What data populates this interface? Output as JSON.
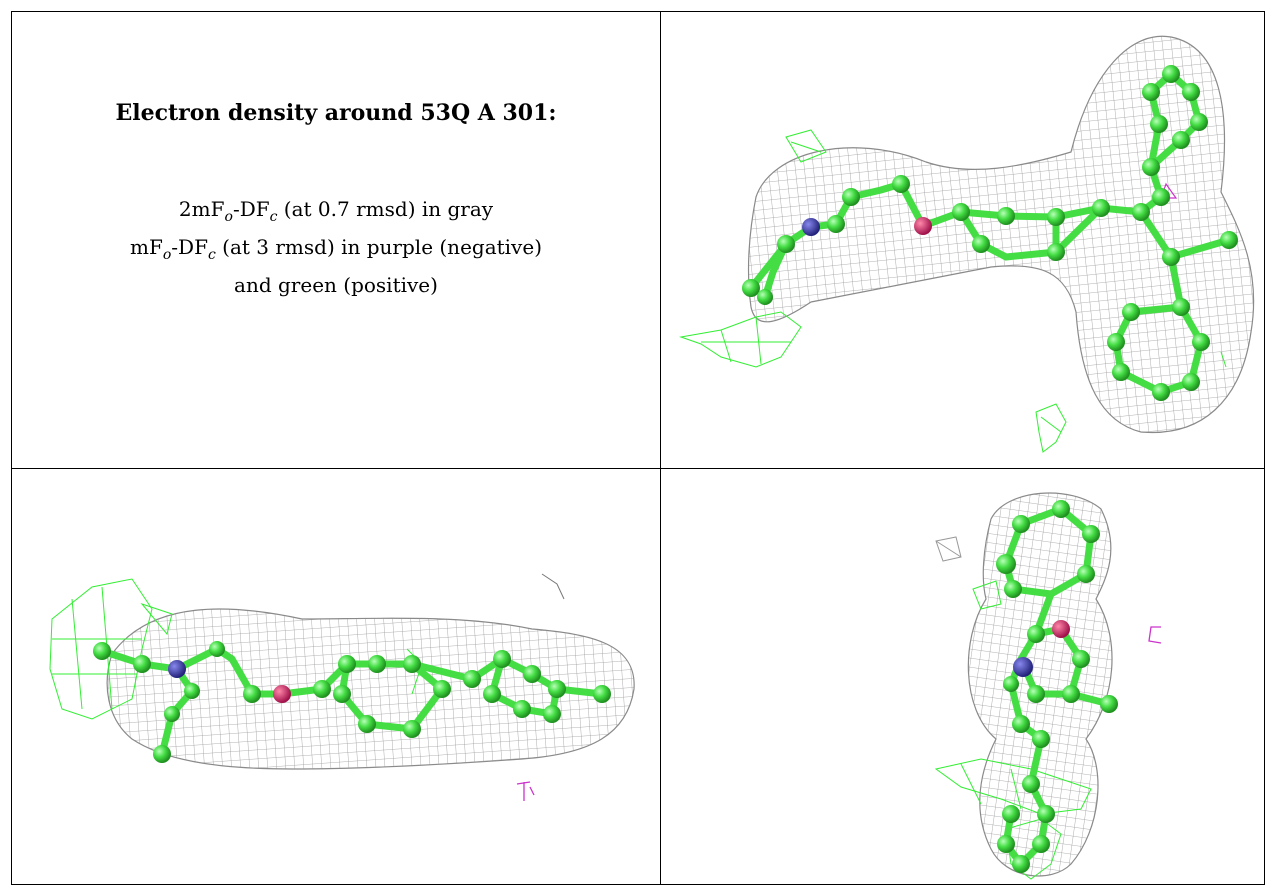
{
  "text": {
    "title": "Electron density around 53Q A 301:",
    "legend_line1_prefix": "2mF",
    "legend_line1_middle": "-DF",
    "legend_line1_suffix": " (at 0.7 rmsd) in gray",
    "legend_line2_prefix": "mF",
    "legend_line2_middle": "-DF",
    "legend_line2_suffix": " (at 3 rmsd) in purple (negative)",
    "legend_line3": "and green (positive)",
    "subscript_o": "o",
    "subscript_c": "c"
  },
  "colors": {
    "density_2fofc": "#9a9a9a",
    "difference_positive": "#33ee33",
    "difference_negative": "#cc33cc",
    "carbon": "#44dd44",
    "nitrogen": "#3333aa",
    "oxygen": "#dd2266",
    "border": "#000000"
  },
  "icons": {
    "view_top_right": "molecule-density-view-1",
    "view_bottom_left": "molecule-density-view-2",
    "view_bottom_right": "molecule-density-view-3"
  }
}
